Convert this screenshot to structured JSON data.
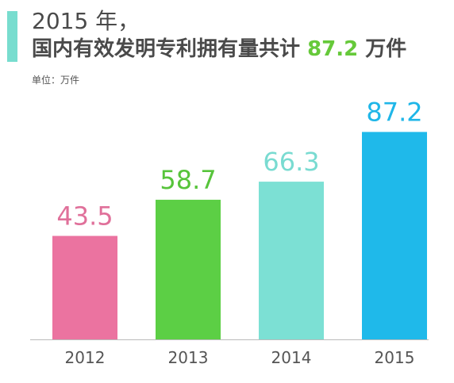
{
  "header": {
    "line1": "2015 年，",
    "line2_prefix": "国内有效发明专利拥有量共计 ",
    "line2_value": "87.2",
    "line2_suffix": " 万件",
    "unit_label": "单位：万件"
  },
  "colors": {
    "accent": "#78ddcf",
    "text": "#4a4a4a",
    "highlight": "#66c93a",
    "axis": "#bbbbbb"
  },
  "chart_data": {
    "type": "bar",
    "categories": [
      "2012",
      "2013",
      "2014",
      "2015"
    ],
    "values": [
      43.5,
      58.7,
      66.3,
      87.2
    ],
    "value_labels": [
      "43.5",
      "58.7",
      "66.3",
      "87.2"
    ],
    "colors": [
      "#eb73a0",
      "#5ccf45",
      "#7ce0d4",
      "#1fb9ea"
    ],
    "label_colors": [
      "#e0709a",
      "#57c43b",
      "#79dbd1",
      "#1fb6e8"
    ],
    "unit": "万件",
    "ylim": [
      0,
      90
    ],
    "grid": false,
    "legend": "none"
  }
}
